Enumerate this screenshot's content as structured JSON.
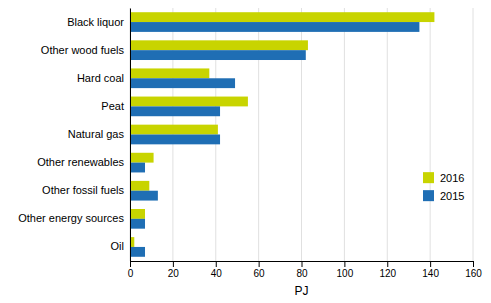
{
  "chart_data": {
    "type": "bar",
    "orientation": "horizontal",
    "categories": [
      "Oil",
      "Other energy sources",
      "Other fossil fuels",
      "Other renewables",
      "Natural gas",
      "Peat",
      "Hard coal",
      "Other wood fuels",
      "Black liquor"
    ],
    "series": [
      {
        "name": "2016",
        "color": "#c8d400",
        "values": [
          2,
          7,
          9,
          11,
          41,
          55,
          37,
          83,
          142
        ]
      },
      {
        "name": "2015",
        "color": "#1f6eb4",
        "values": [
          7,
          7,
          13,
          7,
          42,
          42,
          49,
          82,
          135
        ]
      }
    ],
    "xlabel": "PJ",
    "xlim": [
      0,
      160
    ],
    "xticks": [
      0,
      20,
      40,
      60,
      80,
      100,
      120,
      140,
      160
    ],
    "grid": true,
    "legend": "right"
  }
}
